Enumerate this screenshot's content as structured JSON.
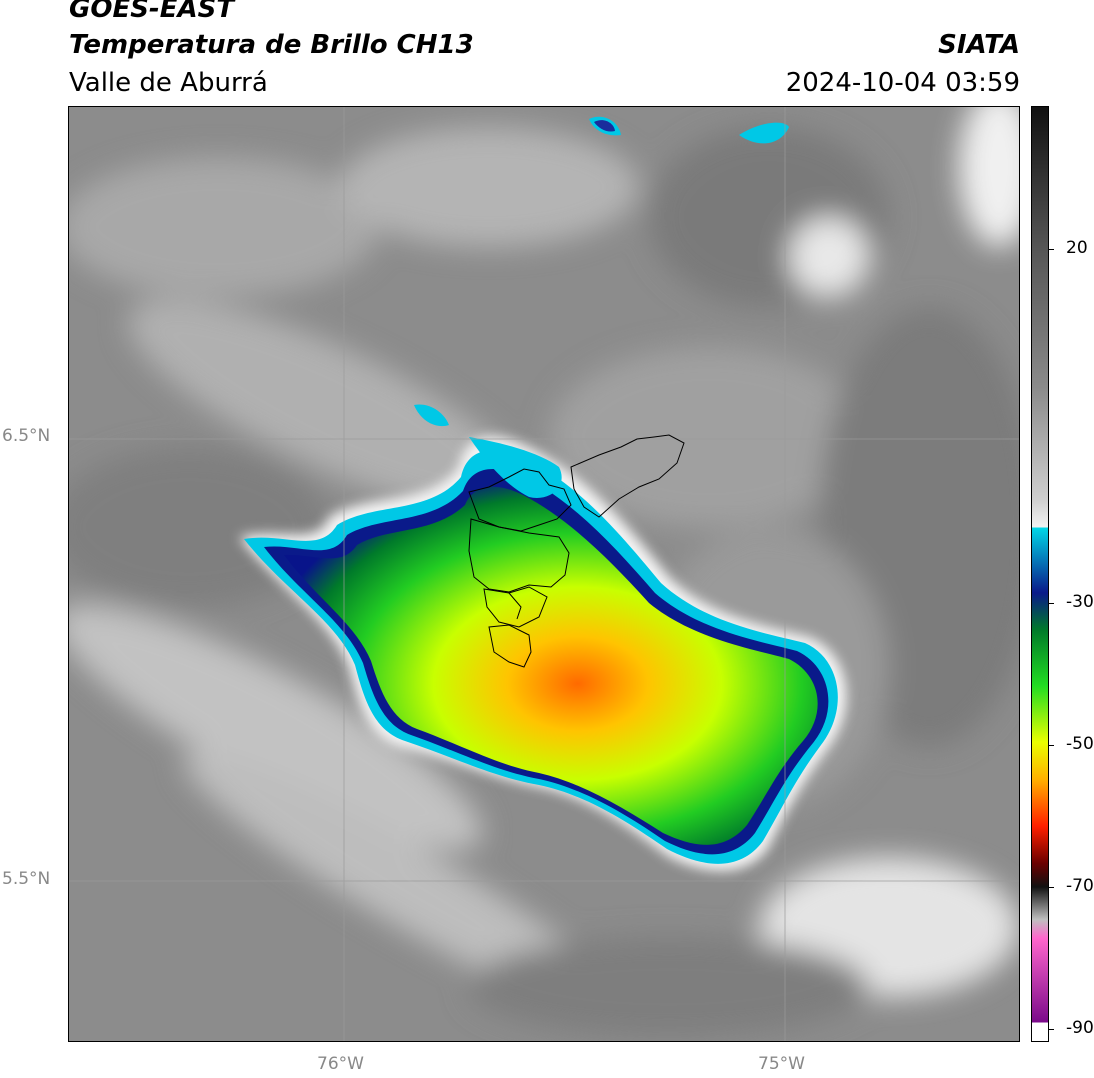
{
  "header": {
    "satellite": "GOES-EAST",
    "product": "Temperatura de Brillo CH13",
    "region": "Valle de Aburrá",
    "organization": "SIATA",
    "datetime": "2024-10-04 03:59"
  },
  "map": {
    "lat_ticks": [
      "6.5°N",
      "5.5°N"
    ],
    "lon_ticks": [
      "76°W",
      "75°W"
    ]
  },
  "colorbar": {
    "ticks": [
      "20",
      "-30",
      "-50",
      "-70",
      "-90"
    ]
  }
}
